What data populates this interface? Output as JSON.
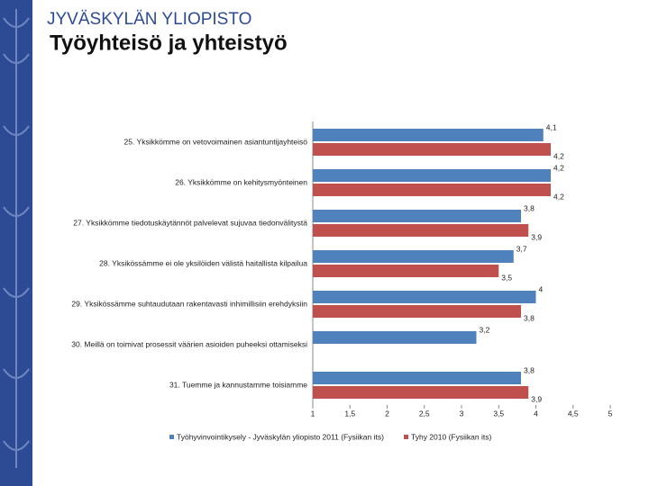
{
  "header": {
    "logo": "JYVÄSKYLÄN YLIOPISTO",
    "title": "Työyhteisö ja yhteistyö"
  },
  "chart_data": {
    "type": "bar",
    "orientation": "horizontal",
    "categories": [
      "25. Yksikkömme on vetovoimainen asiantuntijayhteisö",
      "26. Yksikkömme on kehitysmyönteinen",
      "27. Yksikkömme tiedotuskäytännöt palvelevat sujuvaa tiedonvälitystä",
      "28. Yksikössämme ei ole yksilöiden välistä haitallista kilpailua",
      "29. Yksikössämme suhtaudutaan rakentavasti inhimillisiin erehdyksiin",
      "30. Meillä on toimivat prosessit väärien asioiden puheeksi ottamiseksi",
      "31. Tuemme ja kannustamme toisiamme"
    ],
    "series": [
      {
        "name": "Työhyvinvointikysely - Jyväskylän yliopisto 2011 (Fysiikan its)",
        "color": "#4f81bd",
        "values": [
          4.1,
          4.2,
          3.8,
          3.7,
          4,
          3.2,
          3.8
        ],
        "value_labels": [
          "4,1",
          "4,2",
          "3,8",
          "3,7",
          "4",
          "3,2",
          "3,8"
        ]
      },
      {
        "name": "Tyhy 2010 (Fysiikan its)",
        "color": "#c0504d",
        "values": [
          4.2,
          4.2,
          3.9,
          3.5,
          3.8,
          null,
          3.9
        ],
        "value_labels": [
          "4,2",
          "4,2",
          "3,9",
          "3,5",
          "3,8",
          null,
          "3,9"
        ]
      }
    ],
    "xlim": [
      1,
      5
    ],
    "xticks": [
      1,
      {
        "value": 1.5,
        "label": "1,5"
      },
      2,
      {
        "value": 2.5,
        "label": "2,5"
      },
      3,
      {
        "value": 3.5,
        "label": "3,5"
      },
      4,
      {
        "value": 4.5,
        "label": "4,5"
      },
      5
    ],
    "legend": "bottom"
  }
}
